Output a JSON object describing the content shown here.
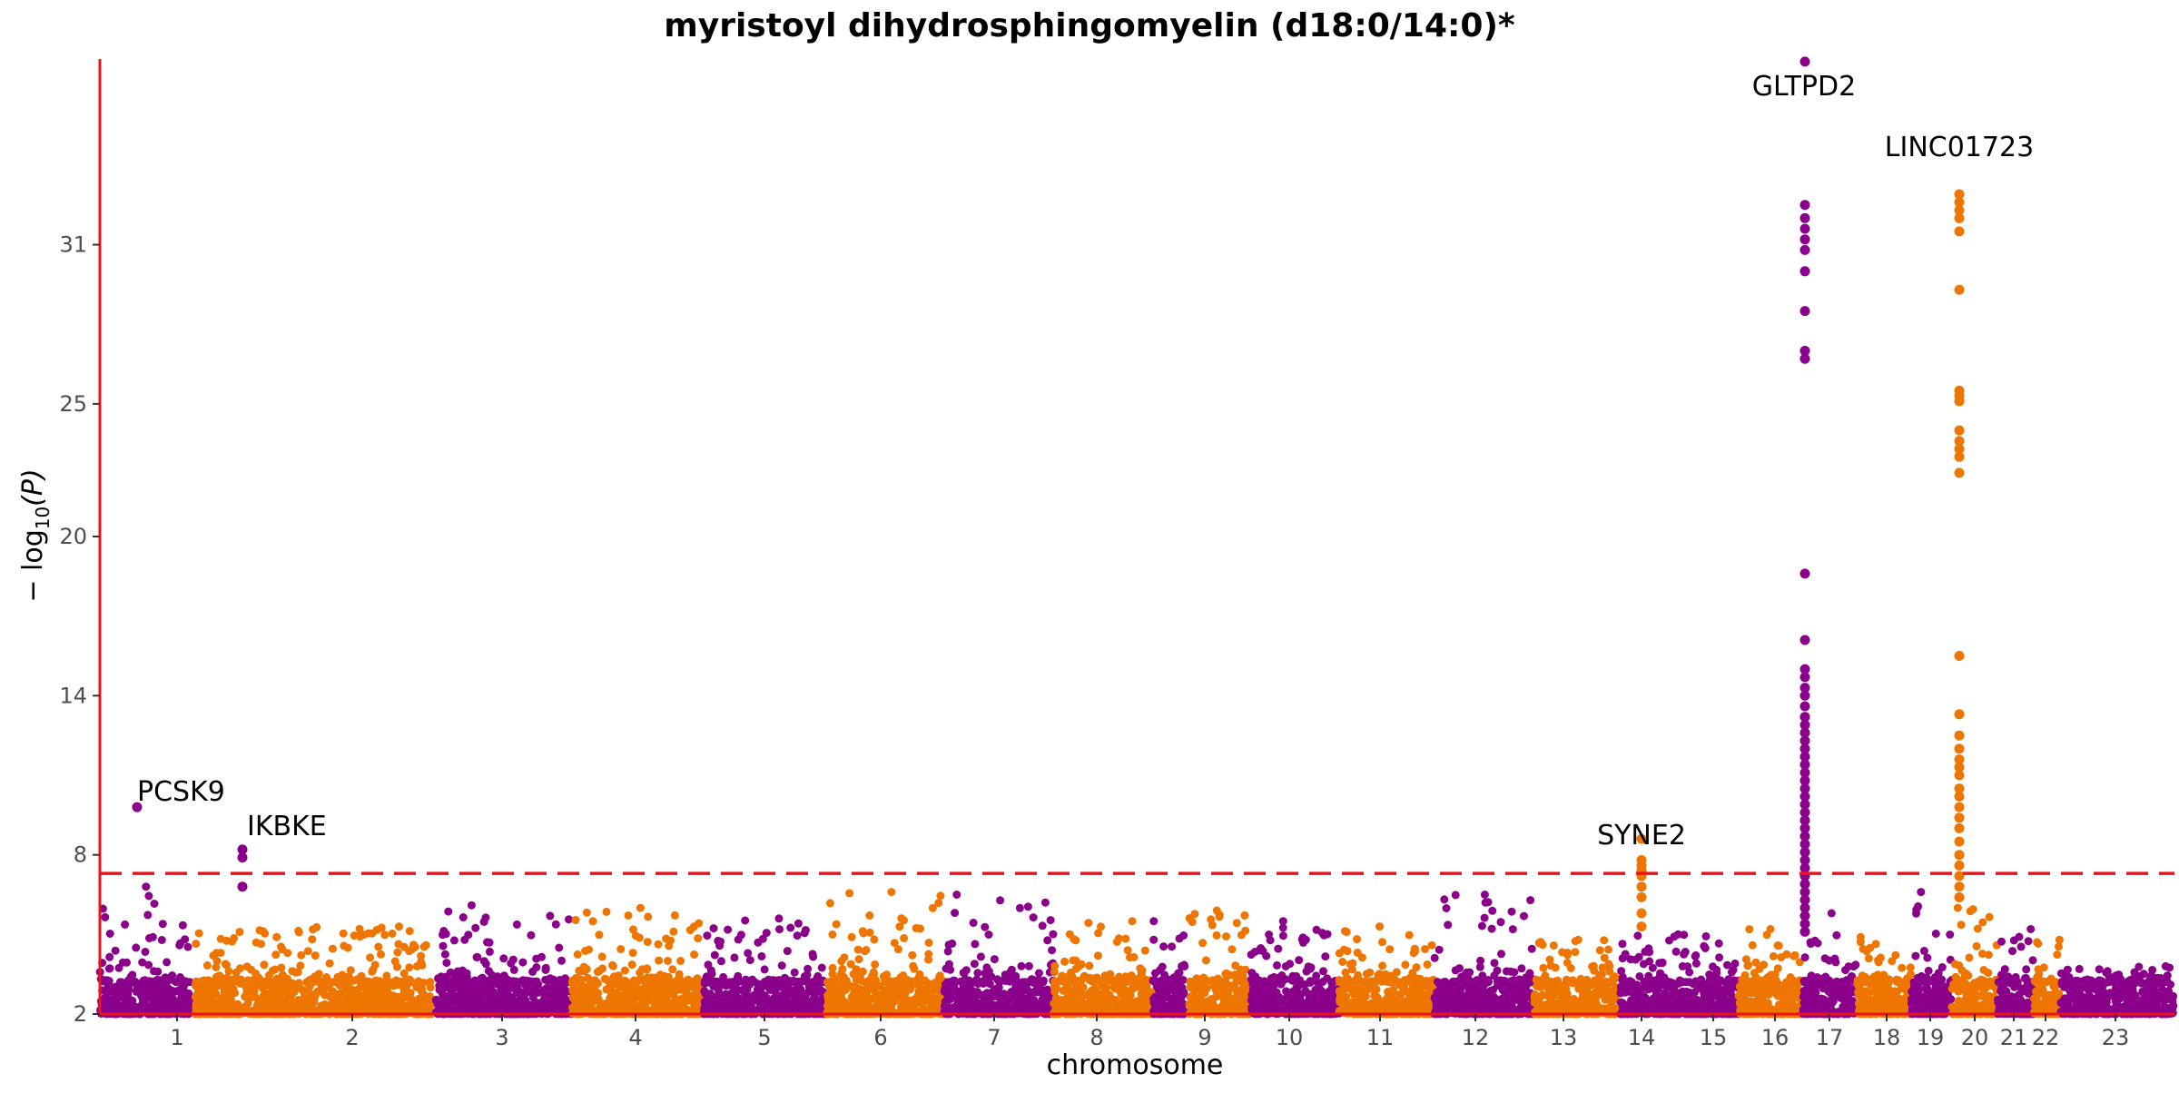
{
  "chart_data": {
    "type": "scatter",
    "subtype": "manhattan",
    "title": "myristoyl dihydrosphingomyelin (d18:0/14:0)*",
    "xlabel": "chromosome",
    "ylabel_parts": {
      "prefix": "− log",
      "sub": "10",
      "suffix": "(P)"
    },
    "ylim": [
      2,
      38
    ],
    "y_ticks": [
      2,
      8,
      14,
      20,
      25,
      31
    ],
    "significance_threshold": 7.3,
    "grid": false,
    "legend": "none",
    "colors": {
      "odd_chromosomes": "#8B008B",
      "even_chromosomes": "#EE7600",
      "axis": "#E8151A",
      "threshold": "#E8151A"
    },
    "chromosomes": [
      {
        "label": "1",
        "max_background": 6.8
      },
      {
        "label": "2",
        "max_background": 5.3
      },
      {
        "label": "3",
        "max_background": 6.1
      },
      {
        "label": "4",
        "max_background": 6.0
      },
      {
        "label": "5",
        "max_background": 5.6
      },
      {
        "label": "6",
        "max_background": 6.6
      },
      {
        "label": "7",
        "max_background": 6.5
      },
      {
        "label": "8",
        "max_background": 5.5
      },
      {
        "label": "9",
        "max_background": 5.5
      },
      {
        "label": "10",
        "max_background": 5.9
      },
      {
        "label": "11",
        "max_background": 5.5
      },
      {
        "label": "12",
        "max_background": 5.3
      },
      {
        "label": "13",
        "max_background": 6.5
      },
      {
        "label": "14",
        "max_background": 4.8
      },
      {
        "label": "15",
        "max_background": 5.0
      },
      {
        "label": "16",
        "max_background": 5.2
      },
      {
        "label": "17",
        "max_background": 5.8
      },
      {
        "label": "18",
        "max_background": 4.9
      },
      {
        "label": "19",
        "max_background": 6.6
      },
      {
        "label": "20",
        "max_background": 6.0
      },
      {
        "label": "21",
        "max_background": 5.2
      },
      {
        "label": "22",
        "max_background": 4.8
      },
      {
        "label": "23",
        "max_background": 3.8
      }
    ],
    "hits": [
      {
        "gene": "PCSK9",
        "chromosome": "1",
        "peak": 9.8,
        "column": [
          9.8
        ]
      },
      {
        "gene": "IKBKE",
        "chromosome": "1",
        "peak": 8.2,
        "column": [
          8.2,
          7.9,
          6.8
        ]
      },
      {
        "gene": "SYNE2",
        "chromosome": "14",
        "peak": 8.6,
        "column": [
          8.6,
          7.8,
          7.6,
          7.4,
          7.2,
          6.8,
          6.4,
          5.8,
          5.3
        ]
      },
      {
        "gene": "GLTPD2",
        "chromosome": "17",
        "peak": 37.9,
        "column": [
          37.9,
          32.5,
          32.0,
          31.6,
          31.2,
          30.8,
          30.0,
          28.5,
          27.0,
          26.7,
          18.6,
          16.1,
          15.0,
          14.7,
          14.3,
          14.0,
          13.6,
          13.2,
          12.9,
          12.6,
          12.3,
          12.0,
          11.7,
          11.4,
          11.1,
          10.8,
          10.5,
          10.2,
          9.9,
          9.6,
          9.3,
          9.0,
          8.7,
          8.4,
          8.1,
          7.8,
          7.5,
          7.2,
          6.9,
          6.6,
          6.3,
          6.0,
          5.7,
          5.4,
          5.1
        ]
      },
      {
        "gene": "LINC01723",
        "chromosome": "20",
        "peak": 32.9,
        "column": [
          32.9,
          32.6,
          32.3,
          32.0,
          31.5,
          29.3,
          25.5,
          25.3,
          25.1,
          24.0,
          23.6,
          23.3,
          23.0,
          22.4,
          15.5,
          13.3,
          12.5,
          12.0,
          11.6,
          11.3,
          11.0,
          10.5,
          10.2,
          9.8,
          9.4,
          9.0,
          8.5,
          8.0,
          7.6,
          7.2,
          6.8,
          6.4
        ]
      }
    ]
  }
}
